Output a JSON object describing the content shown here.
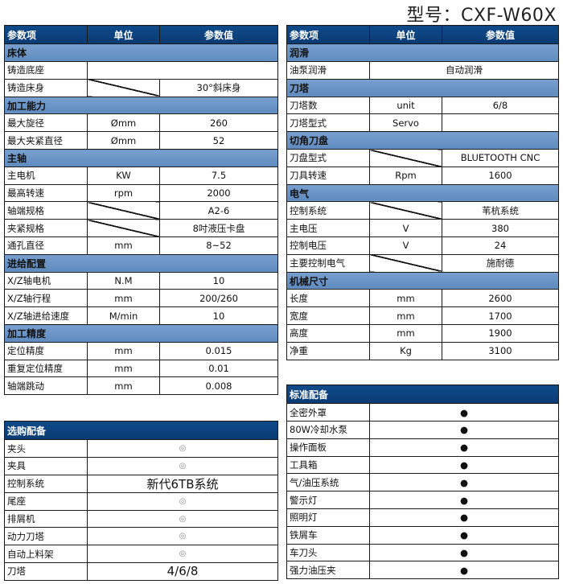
{
  "title": "型号：CXF-W60X",
  "headers": [
    "参数项",
    "单位",
    "参数值"
  ],
  "left_sections": [
    {
      "name": "床体",
      "rows": [
        {
          "label": "铸造底座",
          "unit": "",
          "value": "",
          "merged": true
        },
        {
          "label": "铸造床身",
          "unit": "",
          "value": "30°斜床身",
          "slash": true
        }
      ]
    },
    {
      "name": "加工能力",
      "rows": [
        {
          "label": "最大旋径",
          "unit": "Ømm",
          "value": "260"
        },
        {
          "label": "最大夹紧直径",
          "unit": "Ømm",
          "value": "52"
        }
      ]
    },
    {
      "name": "主轴",
      "rows": [
        {
          "label": "主电机",
          "unit": "KW",
          "value": "7.5"
        },
        {
          "label": "最高转速",
          "unit": "rpm",
          "value": "2000"
        },
        {
          "label": "轴端规格",
          "unit": "",
          "value": "A2-6",
          "slash": true
        },
        {
          "label": "夹紧规格",
          "unit": "",
          "value": "8吋液压卡盘",
          "slash": true
        },
        {
          "label": "通孔直径",
          "unit": "mm",
          "value": "8~52"
        }
      ]
    },
    {
      "name": "进给配置",
      "rows": [
        {
          "label": "X/Z轴电机",
          "unit": "N.M",
          "value": "10"
        },
        {
          "label": "X/Z轴行程",
          "unit": "mm",
          "value": "200/260"
        },
        {
          "label": "X/Z轴进给速度",
          "unit": "M/min",
          "value": "10"
        }
      ]
    },
    {
      "name": "加工精度",
      "rows": [
        {
          "label": "定位精度",
          "unit": "mm",
          "value": "0.015"
        },
        {
          "label": "重复定位精度",
          "unit": "mm",
          "value": "0.01"
        },
        {
          "label": "轴端跳动",
          "unit": "mm",
          "value": "0.008"
        }
      ]
    }
  ],
  "right_sections": [
    {
      "name": "润滑",
      "rows": [
        {
          "label": "油泵润滑",
          "unit": "",
          "value": "自动润滑",
          "merged": true
        }
      ]
    },
    {
      "name": "刀塔",
      "rows": [
        {
          "label": "刀塔数",
          "unit": "unit",
          "value": "6/8"
        },
        {
          "label": "刀塔型式",
          "unit": "Servo",
          "value": ""
        }
      ]
    },
    {
      "name": "切角刀盘",
      "rows": [
        {
          "label": "刀盘型式",
          "unit": "",
          "value": "BLUETOOTH CNC",
          "slash": true
        },
        {
          "label": "刀具转速",
          "unit": "Rpm",
          "value": "1600"
        }
      ]
    },
    {
      "name": "电气",
      "rows": [
        {
          "label": "控制系统",
          "unit": "",
          "value": "苇杭系统",
          "slash": true
        },
        {
          "label": "主电压",
          "unit": "V",
          "value": "380"
        },
        {
          "label": "控制电压",
          "unit": "V",
          "value": "24"
        },
        {
          "label": "主要控制电气",
          "unit": "",
          "value": "施耐德",
          "slash": true
        }
      ]
    },
    {
      "name": "机械尺寸",
      "rows": [
        {
          "label": "长度",
          "unit": "mm",
          "value": "2600"
        },
        {
          "label": "宽度",
          "unit": "mm",
          "value": "1700"
        },
        {
          "label": "高度",
          "unit": "mm",
          "value": "1900"
        },
        {
          "label": "净重",
          "unit": "Kg",
          "value": "3100"
        }
      ]
    }
  ],
  "standard": {
    "title": "标准配备",
    "rows": [
      {
        "label": "全密外罩",
        "value": "●"
      },
      {
        "label": "80W冷却水泵",
        "value": "●"
      },
      {
        "label": "操作面板",
        "value": "●"
      },
      {
        "label": "工具箱",
        "value": "●"
      },
      {
        "label": "气/油压系统",
        "value": "●"
      },
      {
        "label": "警示灯",
        "value": "●"
      },
      {
        "label": "照明灯",
        "value": "●"
      },
      {
        "label": "铁屑车",
        "value": "●"
      },
      {
        "label": "车刀头",
        "value": "●"
      },
      {
        "label": "强力油压夹",
        "value": "●"
      }
    ]
  },
  "optional": {
    "title": "选购配备",
    "rows": [
      {
        "label": "夹头",
        "value": "◎"
      },
      {
        "label": "夹具",
        "value": "◎"
      },
      {
        "label": "控制系统",
        "value": "新代6TB系统",
        "big": true
      },
      {
        "label": "尾座",
        "value": "◎"
      },
      {
        "label": "排屑机",
        "value": "◎"
      },
      {
        "label": "动力刀塔",
        "value": "◎"
      },
      {
        "label": "自动上料架",
        "value": "◎"
      },
      {
        "label": "刀塔",
        "value": "4/6/8",
        "big": true
      }
    ]
  }
}
